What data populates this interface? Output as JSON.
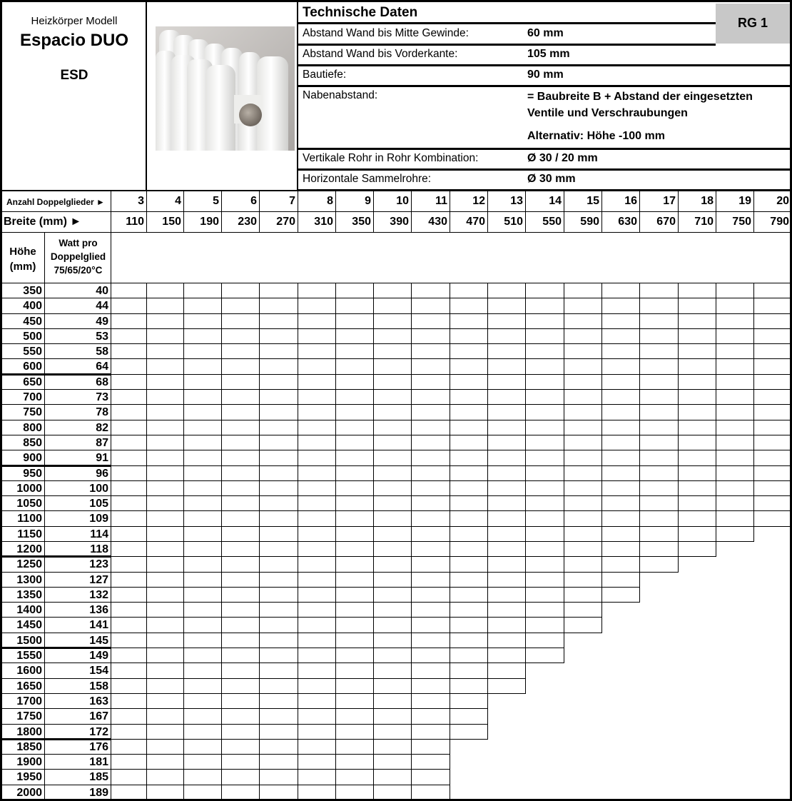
{
  "header": {
    "model_label": "Heizkörper Modell",
    "model_name": "Espacio DUO",
    "model_code": "ESD",
    "image_icon": "radiator-photo"
  },
  "tech": {
    "title": "Technische Daten",
    "badge": "RG 1",
    "badge_color": "#c8c8c8",
    "rows": [
      {
        "label": "Abstand Wand bis Mitte Gewinde:",
        "value": [
          "60 mm"
        ]
      },
      {
        "label": "Abstand Wand bis Vorderkante:",
        "value": [
          "105 mm"
        ]
      },
      {
        "label": "Bautiefe:",
        "value": [
          "90 mm"
        ]
      },
      {
        "label": "Nabenabstand:",
        "value": [
          "= Baubreite B + Abstand der eingesetzten",
          "Ventile und Verschraubungen",
          "Alternativ: Höhe -100 mm"
        ]
      },
      {
        "label": "Vertikale Rohr in Rohr Kombination:",
        "value": [
          "Ø 30 / 20  mm"
        ]
      },
      {
        "label": "Horizontale Sammelrohre:",
        "value": [
          "Ø 30 mm"
        ]
      }
    ]
  },
  "grid": {
    "count_label": "Anzahl Doppelglieder ►",
    "width_label": "Breite (mm) ►",
    "height_header": [
      "Höhe",
      "(mm)"
    ],
    "watt_header": [
      "Watt pro",
      "Doppelglied",
      "75/65/20°C"
    ],
    "columns": [
      {
        "count": "3",
        "width": "110"
      },
      {
        "count": "4",
        "width": "150"
      },
      {
        "count": "5",
        "width": "190"
      },
      {
        "count": "6",
        "width": "230"
      },
      {
        "count": "7",
        "width": "270"
      },
      {
        "count": "8",
        "width": "310"
      },
      {
        "count": "9",
        "width": "350"
      },
      {
        "count": "10",
        "width": "390"
      },
      {
        "count": "11",
        "width": "430"
      },
      {
        "count": "12",
        "width": "470"
      },
      {
        "count": "13",
        "width": "510"
      },
      {
        "count": "14",
        "width": "550"
      },
      {
        "count": "15",
        "width": "590"
      },
      {
        "count": "16",
        "width": "630"
      },
      {
        "count": "17",
        "width": "670"
      },
      {
        "count": "18",
        "width": "710"
      },
      {
        "count": "19",
        "width": "750"
      },
      {
        "count": "20",
        "width": "790"
      }
    ],
    "rows": [
      {
        "height": "350",
        "watt": "40",
        "max_count": 20
      },
      {
        "height": "400",
        "watt": "44",
        "max_count": 20
      },
      {
        "height": "450",
        "watt": "49",
        "max_count": 20
      },
      {
        "height": "500",
        "watt": "53",
        "max_count": 20
      },
      {
        "height": "550",
        "watt": "58",
        "max_count": 20
      },
      {
        "height": "600",
        "watt": "64",
        "max_count": 20
      },
      {
        "height": "650",
        "watt": "68",
        "max_count": 20
      },
      {
        "height": "700",
        "watt": "73",
        "max_count": 20
      },
      {
        "height": "750",
        "watt": "78",
        "max_count": 20
      },
      {
        "height": "800",
        "watt": "82",
        "max_count": 20
      },
      {
        "height": "850",
        "watt": "87",
        "max_count": 20
      },
      {
        "height": "900",
        "watt": "91",
        "max_count": 20
      },
      {
        "height": "950",
        "watt": "96",
        "max_count": 20
      },
      {
        "height": "1000",
        "watt": "100",
        "max_count": 20
      },
      {
        "height": "1050",
        "watt": "105",
        "max_count": 20
      },
      {
        "height": "1100",
        "watt": "109",
        "max_count": 20
      },
      {
        "height": "1150",
        "watt": "114",
        "max_count": 19
      },
      {
        "height": "1200",
        "watt": "118",
        "max_count": 18
      },
      {
        "height": "1250",
        "watt": "123",
        "max_count": 17
      },
      {
        "height": "1300",
        "watt": "127",
        "max_count": 16
      },
      {
        "height": "1350",
        "watt": "132",
        "max_count": 16
      },
      {
        "height": "1400",
        "watt": "136",
        "max_count": 15
      },
      {
        "height": "1450",
        "watt": "141",
        "max_count": 15
      },
      {
        "height": "1500",
        "watt": "145",
        "max_count": 14
      },
      {
        "height": "1550",
        "watt": "149",
        "max_count": 14
      },
      {
        "height": "1600",
        "watt": "154",
        "max_count": 13
      },
      {
        "height": "1650",
        "watt": "158",
        "max_count": 13
      },
      {
        "height": "1700",
        "watt": "163",
        "max_count": 12
      },
      {
        "height": "1750",
        "watt": "167",
        "max_count": 12
      },
      {
        "height": "1800",
        "watt": "172",
        "max_count": 12
      },
      {
        "height": "1850",
        "watt": "176",
        "max_count": 11
      },
      {
        "height": "1900",
        "watt": "181",
        "max_count": 11
      },
      {
        "height": "1950",
        "watt": "185",
        "max_count": 11
      },
      {
        "height": "2000",
        "watt": "189",
        "max_count": 11
      }
    ]
  }
}
